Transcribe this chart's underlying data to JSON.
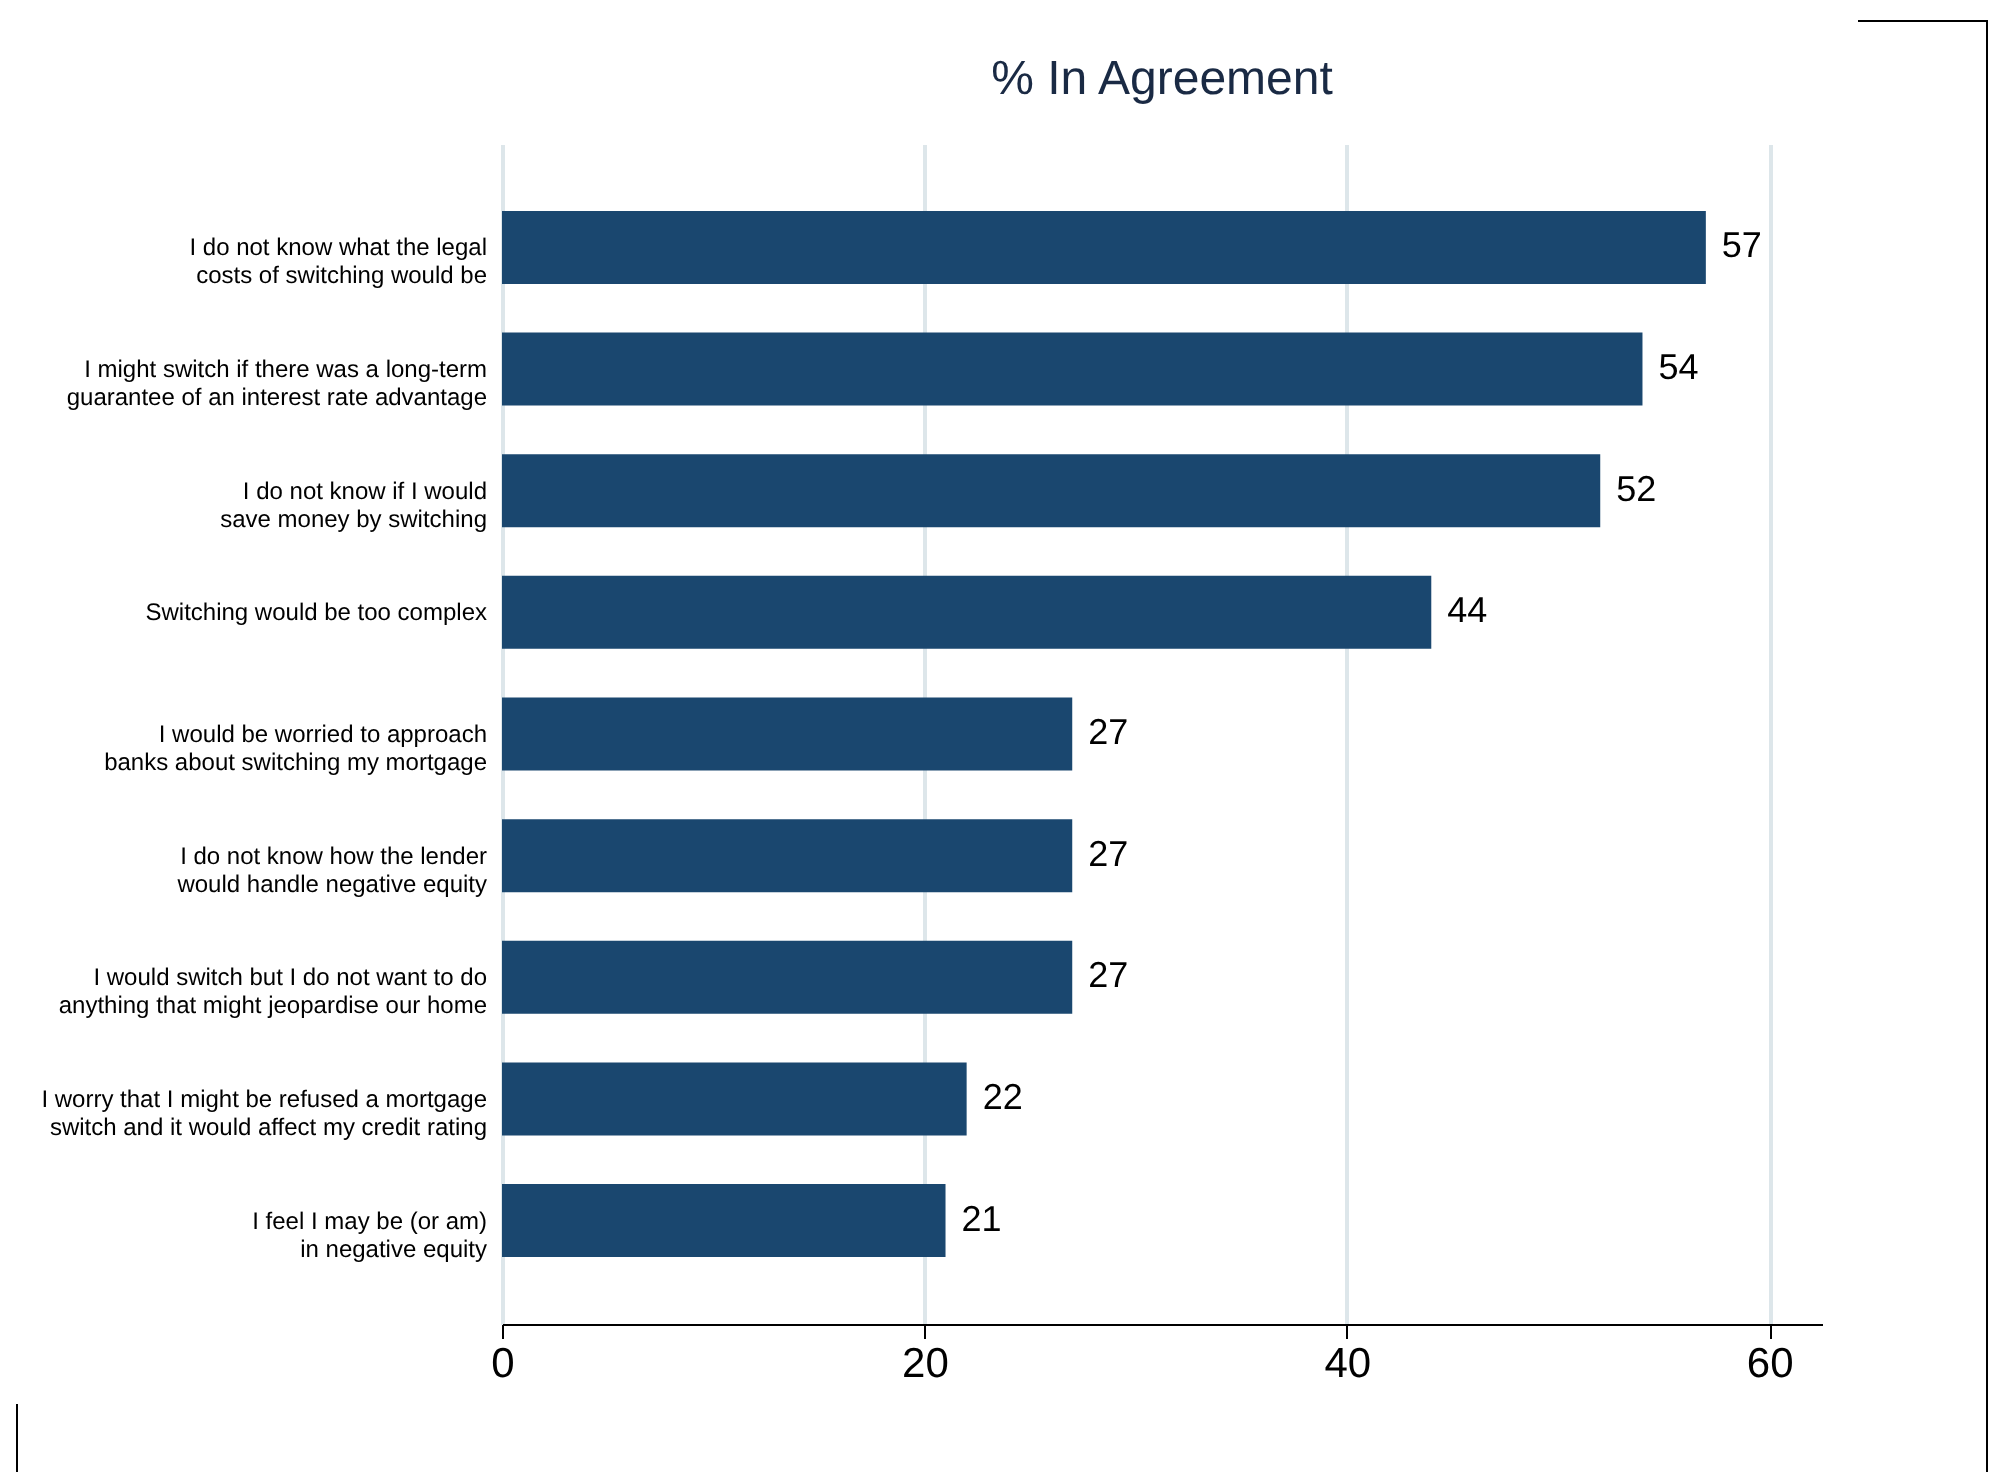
{
  "chart_data": {
    "type": "bar",
    "orientation": "horizontal",
    "title": "% In Agreement",
    "categories": [
      "I do not know what the legal\ncosts of switching would be",
      "I might switch if there was a long-term\nguarantee of an interest rate advantage",
      "I do not know if I would\nsave money by switching",
      "Switching would be too complex",
      "I would be worried to approach\nbanks about switching my mortgage",
      "I do not know how the lender\nwould handle negative equity",
      "I would switch but I do not want to do\nanything that might jeopardise our home",
      "I worry that I might be refused a mortgage\nswitch and it would affect my credit rating",
      "I feel I may be (or am)\nin negative equity"
    ],
    "values": [
      57,
      54,
      52,
      44,
      27,
      27,
      27,
      22,
      21
    ],
    "color": "#1a476f",
    "xlim": [
      0,
      62.5
    ],
    "xticks": [
      0,
      20,
      40,
      60
    ],
    "grid": "x",
    "data_labels": true
  }
}
